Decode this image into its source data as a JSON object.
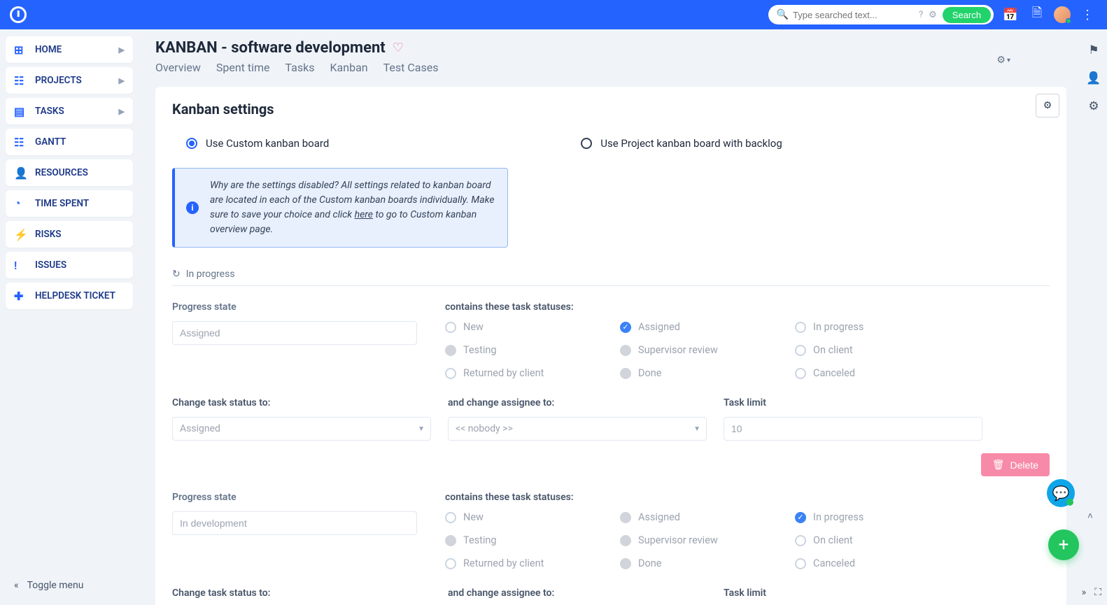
{
  "colors": {
    "primary": "#2563ff",
    "accent_green": "#22d36b",
    "delete": "#f78aa8",
    "bg": "#f0f4f8"
  },
  "topbar": {
    "search_placeholder": "Type searched text...",
    "search_button": "Search"
  },
  "sidebar": {
    "items": [
      {
        "icon": "⊞",
        "label": "HOME",
        "expandable": true
      },
      {
        "icon": "☷",
        "label": "PROJECTS",
        "expandable": true
      },
      {
        "icon": "▤",
        "label": "TASKS",
        "expandable": true
      },
      {
        "icon": "☷",
        "label": "GANTT",
        "expandable": false
      },
      {
        "icon": "👤",
        "label": "RESOURCES",
        "expandable": false
      },
      {
        "icon": "◔",
        "label": "TIME SPENT",
        "expandable": false
      },
      {
        "icon": "⚡",
        "label": "RISKS",
        "expandable": false
      },
      {
        "icon": "!",
        "label": "ISSUES",
        "expandable": false
      },
      {
        "icon": "✚",
        "label": "HELPDESK TICKET",
        "expandable": false
      }
    ],
    "toggle": "Toggle menu"
  },
  "page": {
    "title": "KANBAN - software development",
    "tabs": [
      "Overview",
      "Spent time",
      "Tasks",
      "Kanban",
      "Test Cases"
    ],
    "card_title": "Kanban settings",
    "radio_custom": "Use Custom kanban board",
    "radio_project": "Use Project kanban board with backlog",
    "info_text_pre": "Why are the settings disabled? All settings related to kanban board are located in each of the Custom kanban boards individually. Make sure to save your choice and click ",
    "info_link": "here",
    "info_text_post": " to go to Custom kanban overview page.",
    "section_title": "In progress",
    "labels": {
      "progress_state": "Progress state",
      "contains": "contains these task statuses:",
      "change_status": "Change task status to:",
      "change_assignee": "and change assignee to:",
      "task_limit": "Task limit"
    },
    "states": [
      {
        "name": "Assigned",
        "statuses": [
          {
            "label": "New",
            "type": "open",
            "checked": false
          },
          {
            "label": "Assigned",
            "type": "checked",
            "checked": true
          },
          {
            "label": "In progress",
            "type": "open",
            "checked": false
          },
          {
            "label": "Testing",
            "type": "dim",
            "checked": false
          },
          {
            "label": "Supervisor review",
            "type": "dim",
            "checked": false
          },
          {
            "label": "On client",
            "type": "open",
            "checked": false
          },
          {
            "label": "Returned by client",
            "type": "open",
            "checked": false
          },
          {
            "label": "Done",
            "type": "dim",
            "checked": false
          },
          {
            "label": "Canceled",
            "type": "open",
            "checked": false
          }
        ],
        "change_to": "Assigned",
        "assignee": "<< nobody >>",
        "limit": "10"
      },
      {
        "name": "In development",
        "statuses": [
          {
            "label": "New",
            "type": "open",
            "checked": false
          },
          {
            "label": "Assigned",
            "type": "dim",
            "checked": false
          },
          {
            "label": "In progress",
            "type": "checked",
            "checked": true
          },
          {
            "label": "Testing",
            "type": "dim",
            "checked": false
          },
          {
            "label": "Supervisor review",
            "type": "dim",
            "checked": false
          },
          {
            "label": "On client",
            "type": "open",
            "checked": false
          },
          {
            "label": "Returned by client",
            "type": "open",
            "checked": false
          },
          {
            "label": "Done",
            "type": "dim",
            "checked": false
          },
          {
            "label": "Canceled",
            "type": "open",
            "checked": false
          }
        ],
        "change_to": "",
        "assignee": "",
        "limit": ""
      }
    ],
    "delete": "Delete"
  }
}
